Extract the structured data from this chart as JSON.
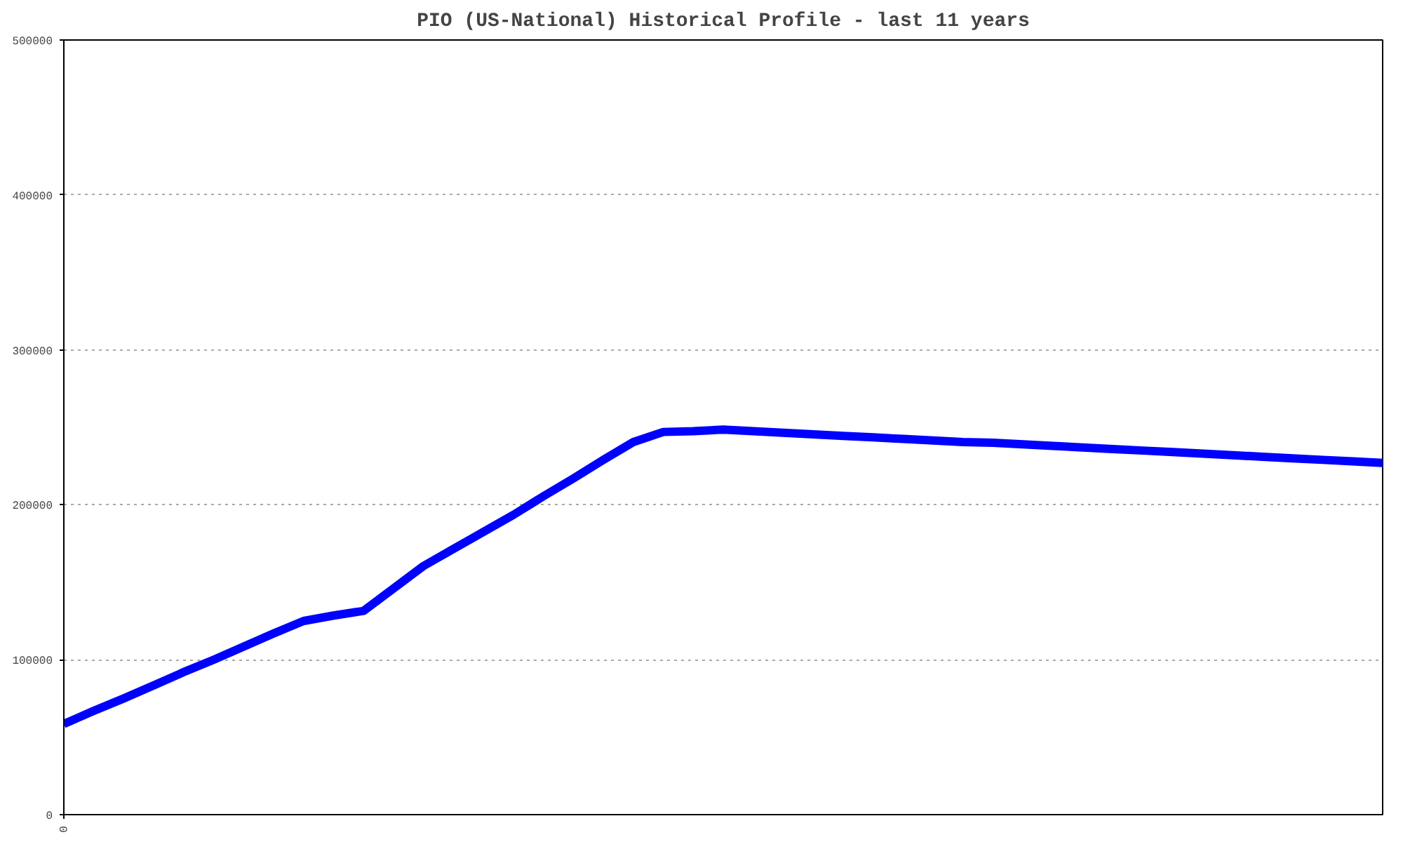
{
  "chart_data": {
    "type": "line",
    "title": "PIO (US-National) Historical Profile - last 11 years",
    "categories": [
      "0",
      null,
      null,
      null,
      null,
      null,
      null,
      null,
      null,
      null,
      null,
      null,
      null,
      null,
      null,
      null,
      null,
      null,
      null,
      null,
      null,
      null,
      null,
      null,
      null,
      null,
      null,
      null,
      null,
      null,
      null,
      null,
      null,
      null,
      null,
      null,
      null,
      null,
      null,
      null,
      null,
      null,
      null,
      null,
      null
    ],
    "series": [
      {
        "color": "#0000ff",
        "values": [
          58500,
          67000,
          75000,
          83500,
          92000,
          100000,
          108500,
          117000,
          125000,
          128500,
          131500,
          146000,
          160500,
          171500,
          182500,
          193500,
          205500,
          217000,
          229000,
          240500,
          247000,
          247500,
          248500,
          247500,
          246500,
          245500,
          244500,
          243500,
          242500,
          241500,
          240500,
          240000,
          239000,
          238000,
          237000,
          236000,
          235000,
          234000,
          233000,
          232000,
          231000,
          230000,
          229000,
          228000,
          227000
        ]
      }
    ],
    "ylim": [
      0,
      500000
    ],
    "yticks": [
      0,
      100000,
      200000,
      300000,
      400000,
      500000
    ],
    "grid": "y",
    "marker": "none",
    "line_style": "solid"
  }
}
